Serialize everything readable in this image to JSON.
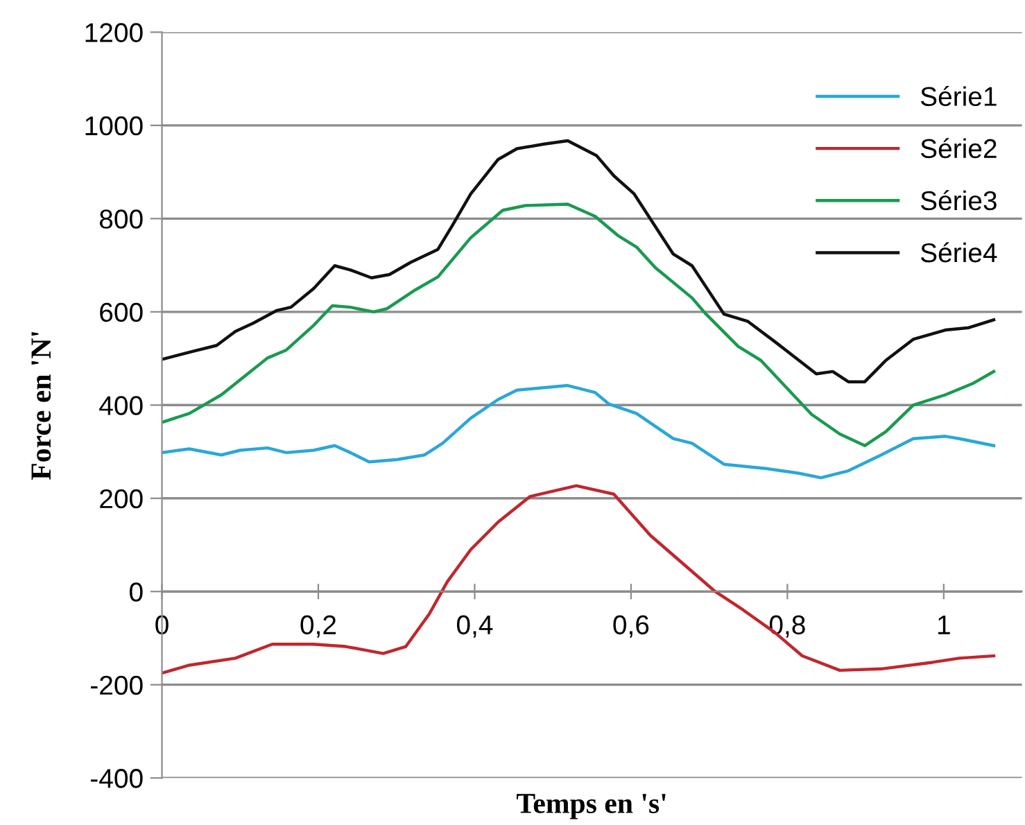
{
  "chart_data": {
    "type": "line",
    "xlabel": "Temps en 's'",
    "ylabel": "Force en 'N'",
    "xlim": [
      0,
      1.1
    ],
    "ylim": [
      -400,
      1200
    ],
    "xticks": [
      0,
      {
        "value": 0.2,
        "label": "0,2"
      },
      {
        "value": 0.4,
        "label": "0,4"
      },
      {
        "value": 0.6,
        "label": "0,6"
      },
      {
        "value": 0.8,
        "label": "0,8"
      },
      1
    ],
    "yticks": [
      -400,
      -200,
      0,
      200,
      400,
      600,
      800,
      1000,
      1200
    ],
    "grid": "y",
    "legend": "top right",
    "marker": "none",
    "line_style": "solid",
    "series": [
      {
        "name": "Série1",
        "color": "#2aa7d8",
        "x": [
          0,
          0.035,
          0.076,
          0.1,
          0.135,
          0.159,
          0.194,
          0.221,
          0.241,
          0.265,
          0.3,
          0.336,
          0.359,
          0.395,
          0.43,
          0.454,
          0.519,
          0.554,
          0.572,
          0.607,
          0.654,
          0.678,
          0.719,
          0.772,
          0.814,
          0.843,
          0.878,
          0.92,
          0.961,
          1.002,
          1.02,
          1.064
        ],
        "values": [
          298,
          306,
          293,
          303,
          308,
          298,
          303,
          313,
          298,
          278,
          283,
          293,
          318,
          372,
          412,
          432,
          442,
          427,
          402,
          382,
          328,
          318,
          273,
          264,
          254,
          244,
          259,
          293,
          328,
          333,
          328,
          313
        ]
      },
      {
        "name": "Série2",
        "color": "#c0272d",
        "x": [
          0,
          0.035,
          0.094,
          0.141,
          0.194,
          0.235,
          0.283,
          0.312,
          0.342,
          0.365,
          0.395,
          0.43,
          0.471,
          0.53,
          0.578,
          0.625,
          0.707,
          0.743,
          0.784,
          0.819,
          0.867,
          0.92,
          0.985,
          1.02,
          1.064
        ],
        "values": [
          -175,
          -158,
          -143,
          -113,
          -113,
          -118,
          -133,
          -118,
          -48,
          21,
          90,
          149,
          204,
          227,
          209,
          120,
          1,
          -39,
          -88,
          -138,
          -169,
          -166,
          -152,
          -143,
          -138
        ]
      },
      {
        "name": "Série3",
        "color": "#1a9a50",
        "x": [
          0,
          0.035,
          0.076,
          0.106,
          0.135,
          0.159,
          0.194,
          0.218,
          0.241,
          0.271,
          0.288,
          0.324,
          0.353,
          0.395,
          0.436,
          0.465,
          0.519,
          0.554,
          0.583,
          0.607,
          0.631,
          0.678,
          0.696,
          0.737,
          0.766,
          0.831,
          0.867,
          0.899,
          0.926,
          0.961,
          1.002,
          1.038,
          1.064
        ],
        "values": [
          363,
          382,
          422,
          462,
          501,
          518,
          571,
          613,
          610,
          600,
          607,
          647,
          675,
          759,
          818,
          828,
          831,
          805,
          764,
          739,
          695,
          630,
          595,
          526,
          496,
          380,
          338,
          313,
          343,
          400,
          422,
          447,
          472
        ]
      },
      {
        "name": "Série4",
        "color": "#111111",
        "x": [
          0,
          0.041,
          0.07,
          0.094,
          0.117,
          0.147,
          0.165,
          0.194,
          0.221,
          0.241,
          0.268,
          0.291,
          0.318,
          0.353,
          0.371,
          0.395,
          0.43,
          0.454,
          0.489,
          0.519,
          0.556,
          0.578,
          0.604,
          0.654,
          0.678,
          0.719,
          0.749,
          0.784,
          0.837,
          0.858,
          0.878,
          0.899,
          0.926,
          0.961,
          1.002,
          1.032,
          1.064
        ],
        "values": [
          498,
          516,
          528,
          558,
          576,
          603,
          610,
          650,
          699,
          690,
          673,
          680,
          706,
          734,
          784,
          853,
          927,
          950,
          960,
          967,
          935,
          892,
          853,
          724,
          699,
          595,
          580,
          536,
          467,
          472,
          450,
          450,
          496,
          541,
          561,
          566,
          583
        ]
      }
    ]
  }
}
